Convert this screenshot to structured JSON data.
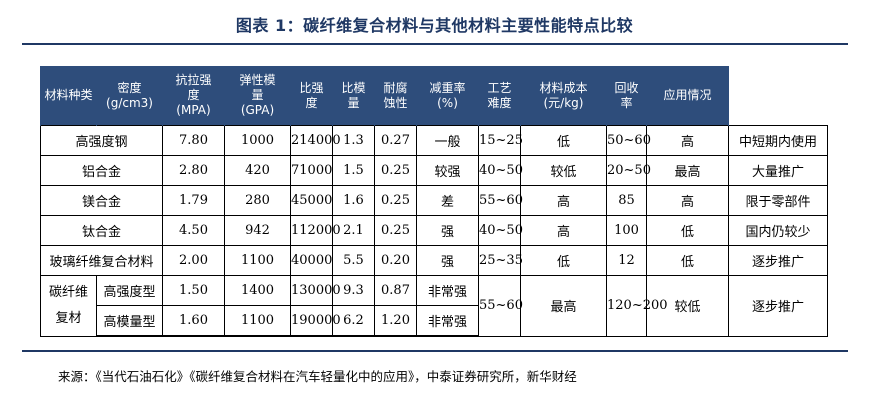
{
  "title": "图表 1：碳纤维复合材料与其他材料主要性能特点比较",
  "headers": [
    "材料种类",
    "密度\n(g/cm3)",
    "抗拉强\n度\n(MPA)",
    "弹性模\n量\n(GPA)",
    "比强\n度",
    "比模\n量",
    "耐腐\n蚀性",
    "减重率\n(%)",
    "工艺\n难度",
    "材料成本\n(元/kg)",
    "回收\n率",
    "应用情况"
  ],
  "rows": [
    [
      "高强度钢",
      "7.80",
      "1000",
      "214000",
      "1.3",
      "0.27",
      "一般",
      "15~25",
      "低",
      "50~60",
      "高",
      "中短期内使用"
    ],
    [
      "铝合金",
      "2.80",
      "420",
      "71000",
      "1.5",
      "0.25",
      "较强",
      "40~50",
      "较低",
      "20~50",
      "最高",
      "大量推广"
    ],
    [
      "镁合金",
      "1.79",
      "280",
      "45000",
      "1.6",
      "0.25",
      "差",
      "55~60",
      "高",
      "85",
      "高",
      "限于零部件"
    ],
    [
      "钛合金",
      "4.50",
      "942",
      "112000",
      "2.1",
      "0.25",
      "强",
      "40~50",
      "高",
      "100",
      "低",
      "国内仍较少"
    ],
    [
      "玻璃纤维复合材料",
      "2.00",
      "1100",
      "40000",
      "5.5",
      "0.20",
      "强",
      "25~35",
      "低",
      "12",
      "低",
      "逐步推广"
    ]
  ],
  "carbon": {
    "group_label": "碳纤维\n复材",
    "sub": [
      {
        "name": "高强度型",
        "density": "1.50",
        "tensile": "1400",
        "modulus": "130000",
        "spec_strength": "9.3",
        "spec_modulus": "0.87",
        "corrosion": "非常强"
      },
      {
        "name": "高模量型",
        "density": "1.60",
        "tensile": "1100",
        "modulus": "190000",
        "spec_strength": "6.2",
        "spec_modulus": "1.20",
        "corrosion": "非常强"
      }
    ],
    "weight_reduction": "55~60",
    "difficulty": "最高",
    "cost": "120~200",
    "recycle": "较低",
    "application": "逐步推广"
  },
  "source": "来源：《当代石油石化》《碳纤维复合材料在汽车轻量化中的应用》，中泰证券研究所，新华财经",
  "colors": {
    "header_bg": "#2e4d7b",
    "title": "#1f3864",
    "rule": "#1f3864"
  }
}
